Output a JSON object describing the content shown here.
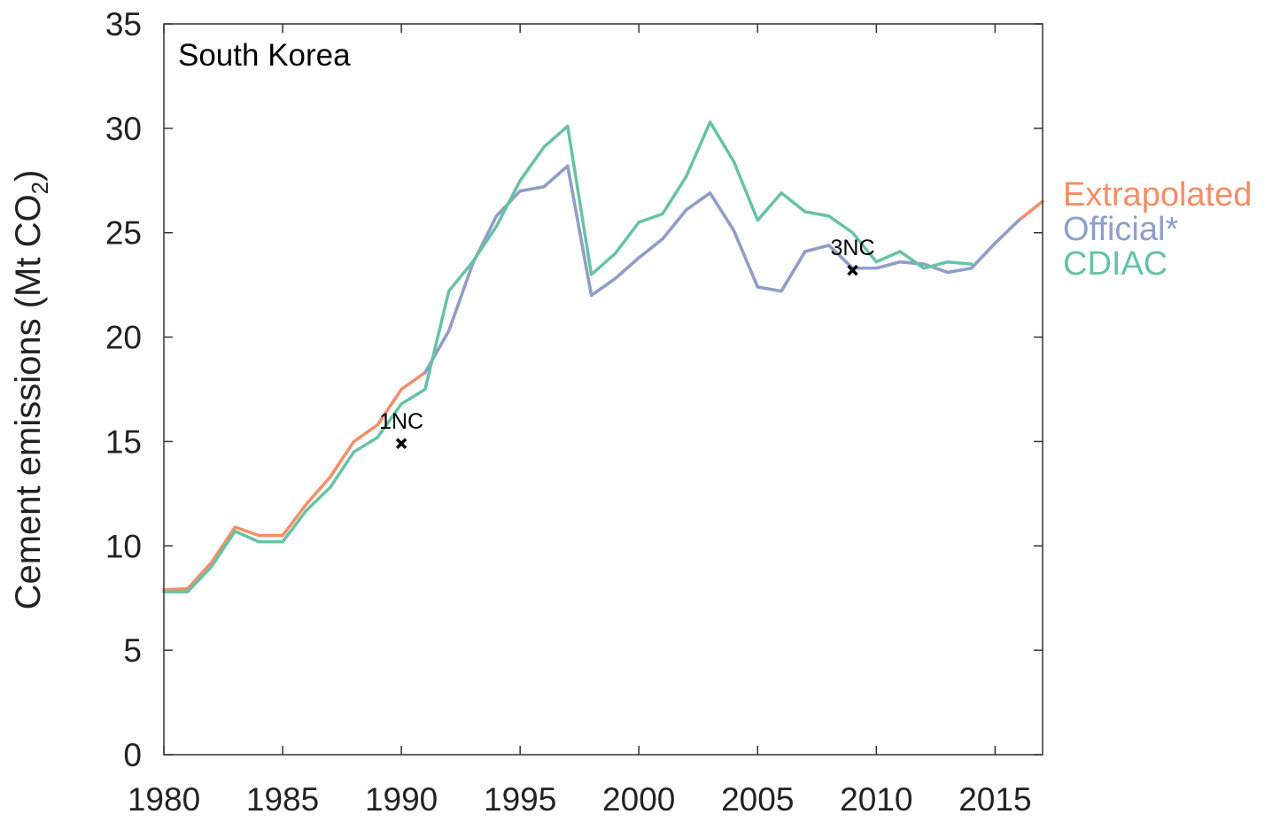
{
  "chart_data": {
    "type": "line",
    "title": "South Korea",
    "ylabel": "Cement emissions (Mt CO",
    "ylabel_sub": "2",
    "ylabel_end": ")",
    "xlim": [
      1980,
      2017
    ],
    "ylim": [
      0,
      35
    ],
    "x_ticks": [
      1980,
      1985,
      1990,
      1995,
      2000,
      2005,
      2010,
      2015
    ],
    "x_tick_labels": [
      "1980",
      "1985",
      "1990",
      "1995",
      "2000",
      "2005",
      "2010",
      "2015"
    ],
    "y_ticks": [
      0,
      5,
      10,
      15,
      20,
      25,
      30,
      35
    ],
    "y_tick_labels": [
      "0",
      "5",
      "10",
      "15",
      "20",
      "25",
      "30",
      "35"
    ],
    "grid": false,
    "legend_position": "right",
    "series": [
      {
        "name": "Extrapolated",
        "color": "#F58D65",
        "x": [
          1980,
          1981,
          1982,
          1983,
          1984,
          1985,
          1986,
          1987,
          1988,
          1989,
          1990,
          1991,
          1992,
          1993,
          1994,
          1995,
          1996,
          1997,
          1998,
          1999,
          2000,
          2001,
          2002,
          2003,
          2004,
          2005,
          2006,
          2007,
          2008,
          2009,
          2010,
          2011,
          2012,
          2013,
          2014,
          2015,
          2016,
          2017
        ],
        "values": [
          7.9,
          7.95,
          9.2,
          10.9,
          10.5,
          10.5,
          12.0,
          13.3,
          15.0,
          15.8,
          17.5,
          18.3,
          20.3,
          23.5,
          25.8,
          27.0,
          27.2,
          28.2,
          22.0,
          22.8,
          23.8,
          24.7,
          26.1,
          26.9,
          25.1,
          22.4,
          22.2,
          24.1,
          24.4,
          23.3,
          23.3,
          23.6,
          23.5,
          23.1,
          23.3,
          24.5,
          25.6,
          26.5
        ]
      },
      {
        "name": "Official*",
        "color": "#8D9FCB",
        "x": [
          1991,
          1992,
          1993,
          1994,
          1995,
          1996,
          1997,
          1998,
          1999,
          2000,
          2001,
          2002,
          2003,
          2004,
          2005,
          2006,
          2007,
          2008,
          2009,
          2010,
          2011,
          2012,
          2013,
          2014,
          2015,
          2016
        ],
        "values": [
          18.3,
          20.3,
          23.5,
          25.8,
          27.0,
          27.2,
          28.2,
          22.0,
          22.8,
          23.8,
          24.7,
          26.1,
          26.9,
          25.1,
          22.4,
          22.2,
          24.1,
          24.4,
          23.3,
          23.3,
          23.6,
          23.5,
          23.1,
          23.3,
          24.5,
          25.6
        ]
      },
      {
        "name": "CDIAC",
        "color": "#66C2A5",
        "x": [
          1980,
          1981,
          1982,
          1983,
          1984,
          1985,
          1986,
          1987,
          1988,
          1989,
          1990,
          1991,
          1992,
          1993,
          1994,
          1995,
          1996,
          1997,
          1998,
          1999,
          2000,
          2001,
          2002,
          2003,
          2004,
          2005,
          2006,
          2007,
          2008,
          2009,
          2010,
          2011,
          2012,
          2013,
          2014
        ],
        "values": [
          7.8,
          7.8,
          9.0,
          10.7,
          10.2,
          10.2,
          11.7,
          12.8,
          14.5,
          15.2,
          16.8,
          17.5,
          22.2,
          23.6,
          25.3,
          27.5,
          29.1,
          30.1,
          23.0,
          24.0,
          25.5,
          25.9,
          27.7,
          30.3,
          28.4,
          25.6,
          26.9,
          26.0,
          25.8,
          25.0,
          23.6,
          24.1,
          23.3,
          23.6,
          23.5
        ]
      }
    ],
    "annotations": [
      {
        "label": "1NC",
        "x": 1990,
        "y": 14.9,
        "marker": "x"
      },
      {
        "label": "3NC",
        "x": 2009,
        "y": 23.2,
        "marker": "x"
      }
    ]
  }
}
